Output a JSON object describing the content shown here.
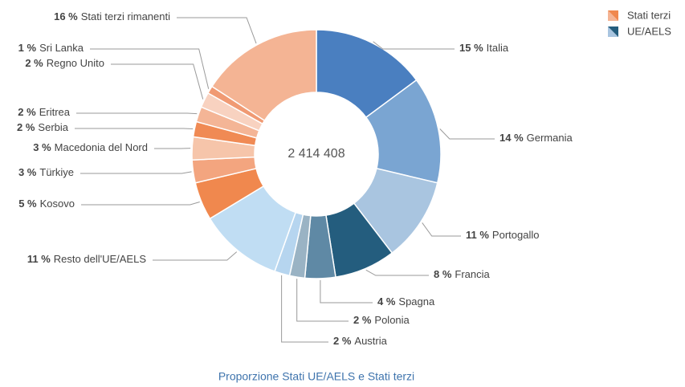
{
  "chart_data": {
    "type": "donut",
    "center_label": "2 414 408",
    "caption": "Proporzione Stati UE/AELS e Stati terzi",
    "categories": [
      "Italia",
      "Germania",
      "Portogallo",
      "Francia",
      "Spagna",
      "Polonia",
      "Austria",
      "Resto dell'UE/AELS",
      "Kosovo",
      "Türkiye",
      "Macedonia del Nord",
      "Serbia",
      "Eritrea",
      "Regno Unito",
      "Sri Lanka",
      "Stati terzi rimanenti"
    ],
    "values": [
      15,
      14,
      11,
      8,
      4,
      2,
      2,
      11,
      5,
      3,
      3,
      2,
      2,
      2,
      1,
      16
    ],
    "value_labels": [
      "15 %",
      "14 %",
      "11 %",
      "8 %",
      "4 %",
      "2 %",
      "2 %",
      "11 %",
      "5 %",
      "3 %",
      "3 %",
      "2 %",
      "2 %",
      "2 %",
      "1 %",
      "16 %"
    ],
    "colors": [
      "#4a7fc0",
      "#7aa5d2",
      "#a9c5e0",
      "#245d7e",
      "#5f89a5",
      "#9ab3c4",
      "#b6d5ef",
      "#c0ddf3",
      "#f0884e",
      "#f3a57f",
      "#f6c5aa",
      "#f08a54",
      "#f4b596",
      "#f8d2c0",
      "#f09a73",
      "#f4b494"
    ],
    "legend": [
      {
        "name": "Stati terzi",
        "colors": [
          "#f4b494",
          "#f0884e"
        ]
      },
      {
        "name": "UE/AELS",
        "colors": [
          "#a9c5e0",
          "#245d7e"
        ]
      }
    ]
  }
}
